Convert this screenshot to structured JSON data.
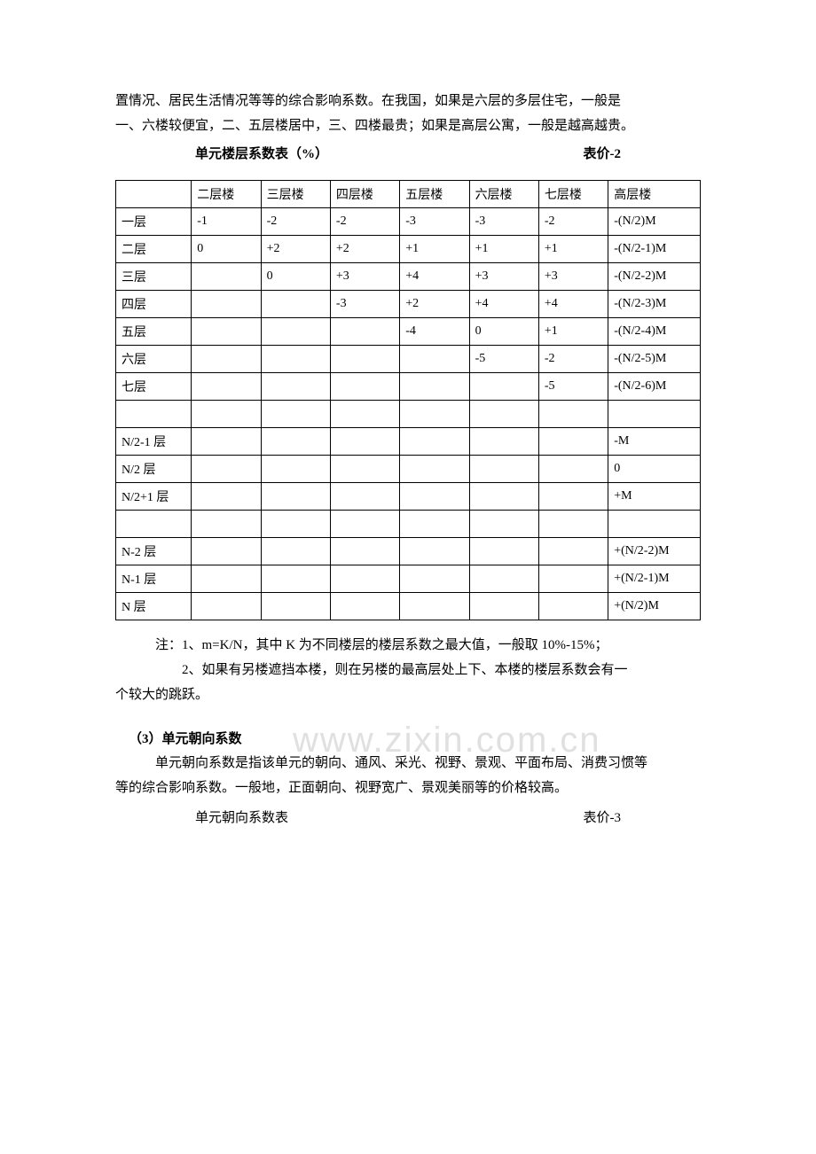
{
  "intro": {
    "line1": "置情况、居民生活情况等等的综合影响系数。在我国，如果是六层的多层住宅，一般是",
    "line2": "一、六楼较便宜，二、五层楼居中，三、四楼最贵；如果是高层公寓，一般是越高越贵。"
  },
  "table1": {
    "title": "单元楼层系数表（%）",
    "label": "表价-2",
    "headers": [
      "",
      "二层楼",
      "三层楼",
      "四层楼",
      "五层楼",
      "六层楼",
      "七层楼",
      "高层楼"
    ],
    "rows": [
      [
        "一层",
        "-1",
        "-2",
        "-2",
        "-3",
        "-3",
        "-2",
        "-(N/2)M"
      ],
      [
        "二层",
        "0",
        "+2",
        "+2",
        "+1",
        "+1",
        "+1",
        "-(N/2-1)M"
      ],
      [
        "三层",
        "",
        "0",
        "+3",
        "+4",
        "+3",
        "+3",
        "-(N/2-2)M"
      ],
      [
        "四层",
        "",
        "",
        "-3",
        "+2",
        "+4",
        "+4",
        "-(N/2-3)M"
      ],
      [
        "五层",
        "",
        "",
        "",
        "-4",
        "0",
        "+1",
        "-(N/2-4)M"
      ],
      [
        "六层",
        "",
        "",
        "",
        "",
        "-5",
        "-2",
        "-(N/2-5)M"
      ],
      [
        "七层",
        "",
        "",
        "",
        "",
        "",
        "-5",
        "-(N/2-6)M"
      ],
      [
        "",
        "",
        "",
        "",
        "",
        "",
        "",
        ""
      ],
      [
        "N/2-1 层",
        "",
        "",
        "",
        "",
        "",
        "",
        "-M"
      ],
      [
        "N/2 层",
        "",
        "",
        "",
        "",
        "",
        "",
        "0"
      ],
      [
        "N/2+1 层",
        "",
        "",
        "",
        "",
        "",
        "",
        "+M"
      ],
      [
        "",
        "",
        "",
        "",
        "",
        "",
        "",
        ""
      ],
      [
        "N-2 层",
        "",
        "",
        "",
        "",
        "",
        "",
        "+(N/2-2)M"
      ],
      [
        "N-1 层",
        "",
        "",
        "",
        "",
        "",
        "",
        "+(N/2-1)M"
      ],
      [
        "N 层",
        "",
        "",
        "",
        "",
        "",
        "",
        "+(N/2)M"
      ]
    ],
    "border_color": "#000000",
    "font_size": 14
  },
  "watermark": "www.zixin.com.cn",
  "notes": {
    "n1": "注：1、m=K/N，其中 K 为不同楼层的楼层系数之最大值，一般取 10%-15%；",
    "n2_a": "2、如果有另楼遮挡本楼，则在另楼的最高层处上下、本楼的楼层系数会有一",
    "n2_b": "个较大的跳跃。"
  },
  "section3": {
    "heading": "（3）单元朝向系数",
    "p1": "单元朝向系数是指该单元的朝向、通风、采光、视野、景观、平面布局、消费习惯等",
    "p2": "等的综合影响系数。一般地，正面朝向、视野宽广、景观美丽等的价格较高。",
    "table_title": "单元朝向系数表",
    "table_label": "表价-3"
  }
}
